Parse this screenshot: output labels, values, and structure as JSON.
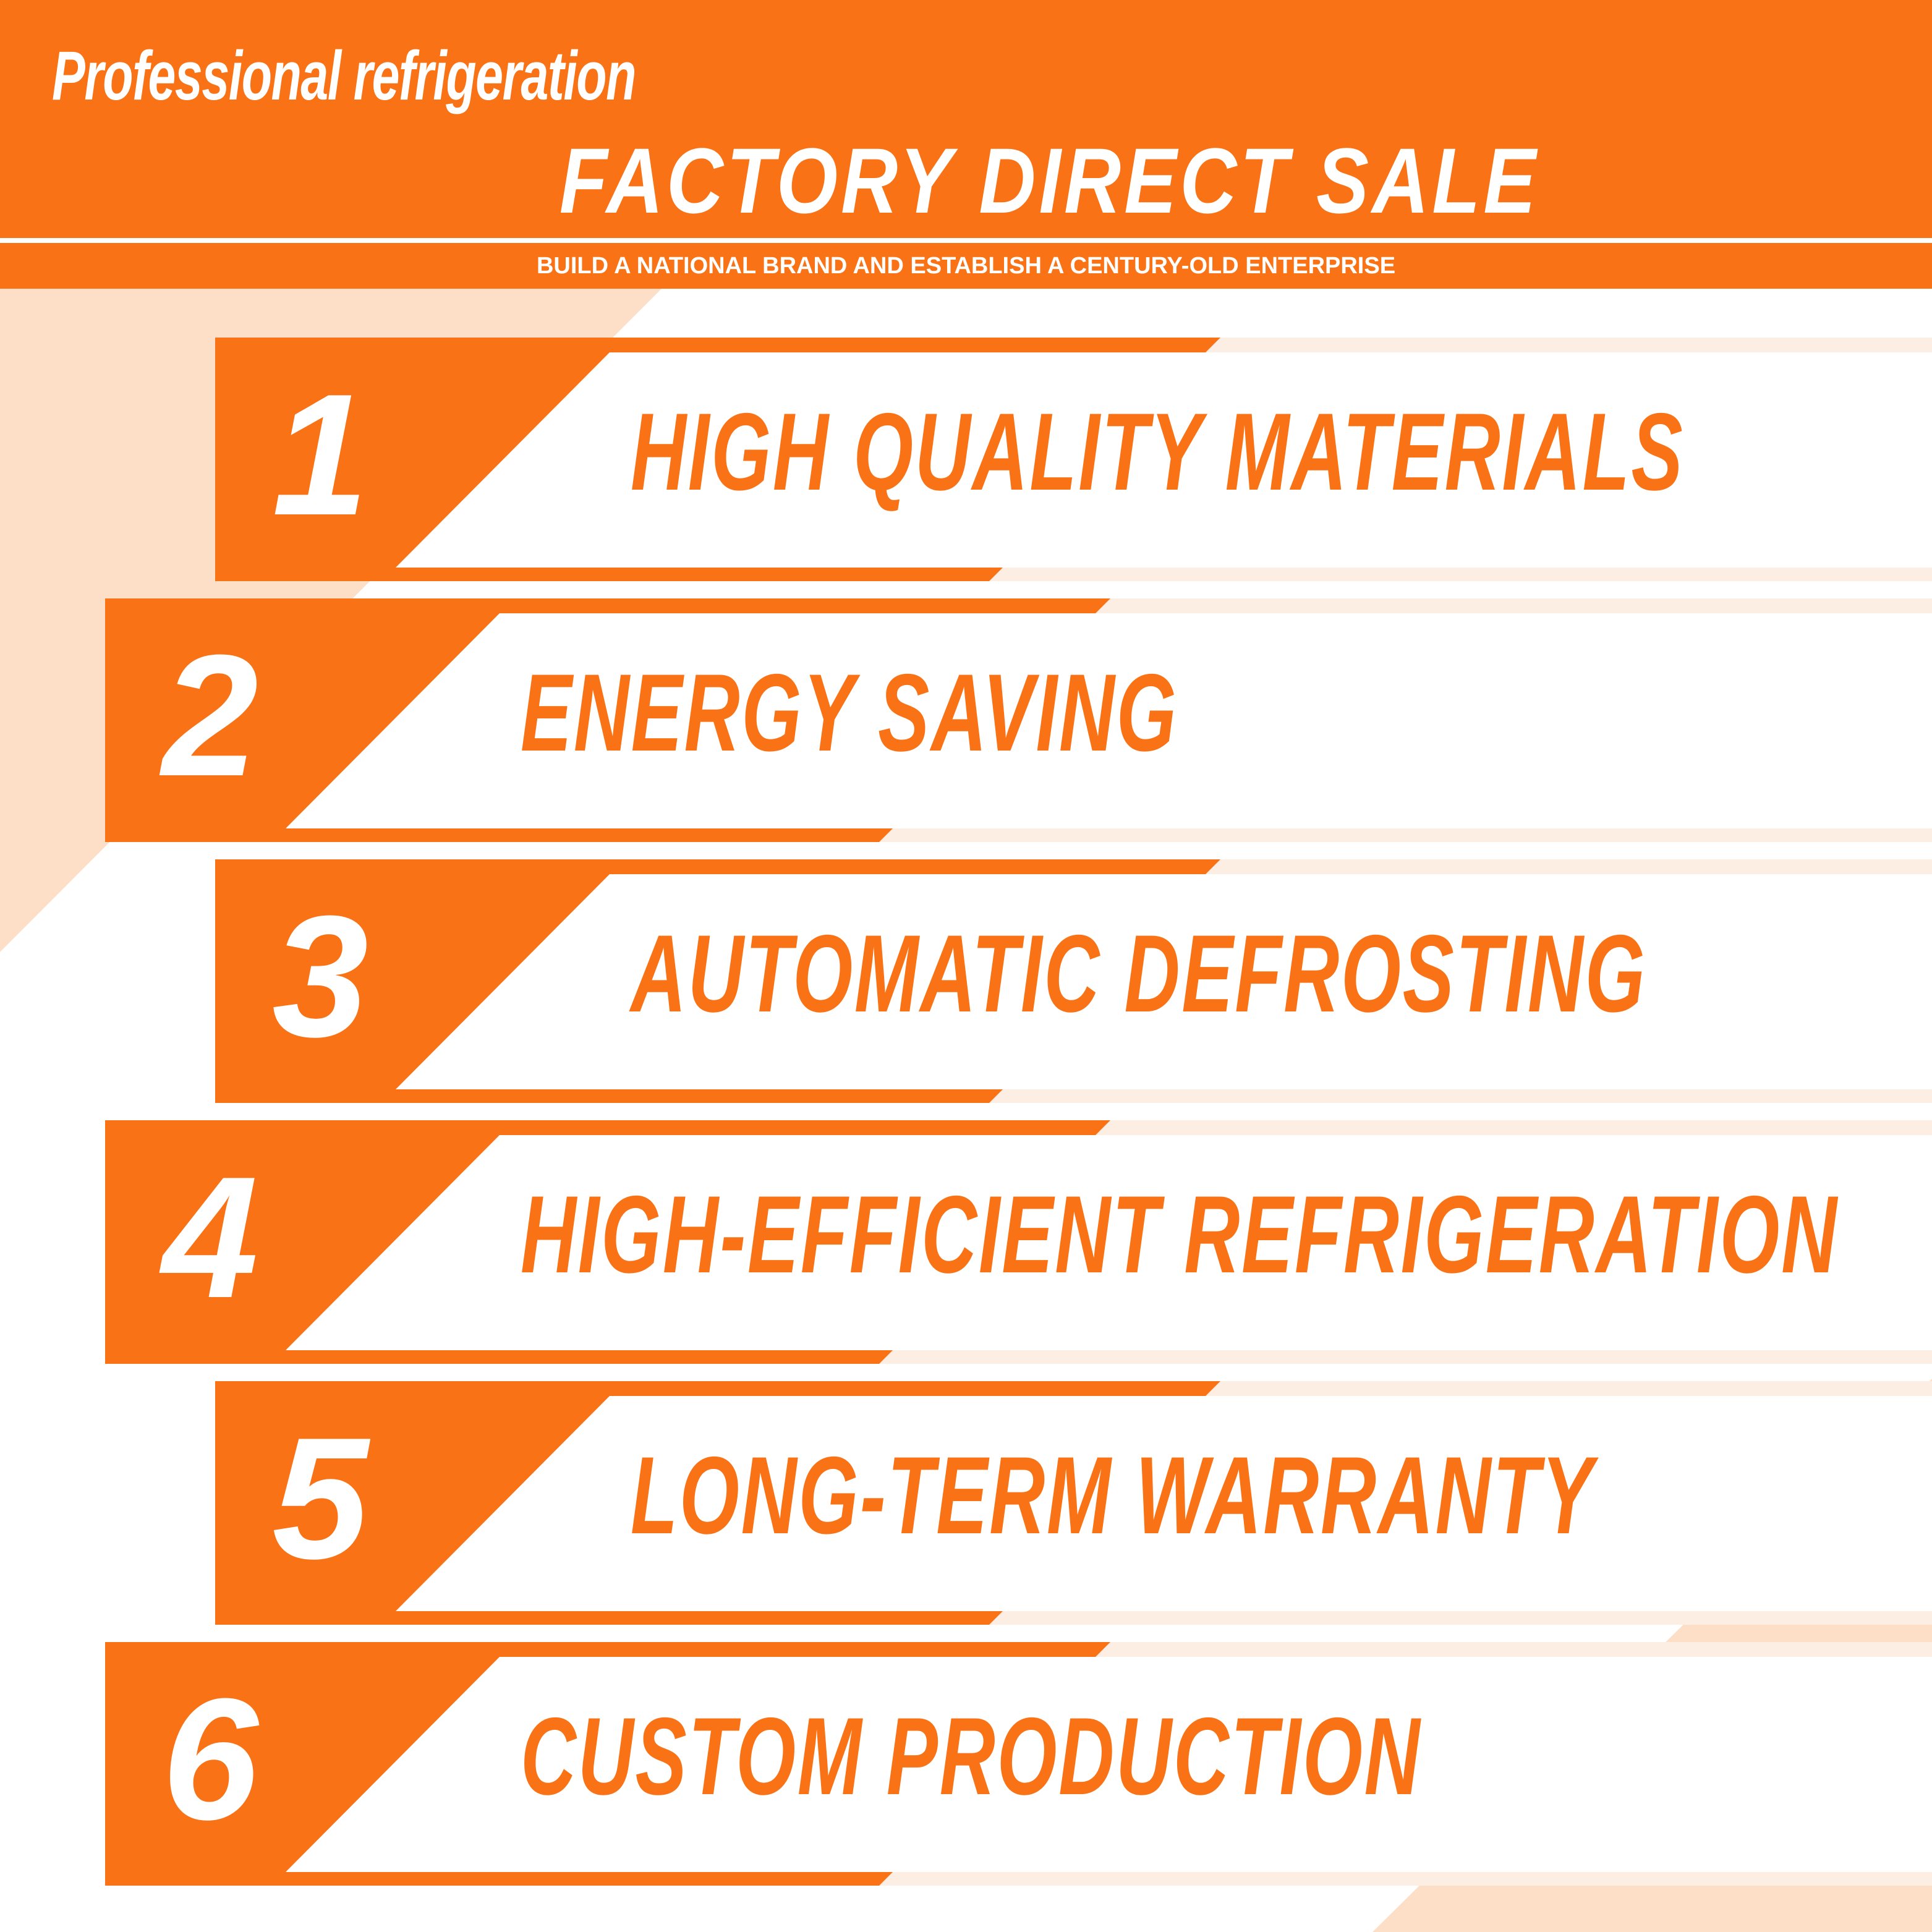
{
  "header": {
    "tagline": "Professional refrigeration",
    "title": "FACTORY DIRECT SALE",
    "subtitle": "BUILD A NATIONAL BRAND AND ESTABLISH A CENTURY-OLD ENTERPRISE"
  },
  "features": [
    {
      "number": "1",
      "label": "HIGH QUALITY MATERIALS"
    },
    {
      "number": "2",
      "label": "ENERGY SAVING"
    },
    {
      "number": "3",
      "label": "AUTOMATIC DEFROSTING"
    },
    {
      "number": "4",
      "label": "HIGH-EFFICIENT REFRIGERATION"
    },
    {
      "number": "5",
      "label": "LONG-TERM WARRANTY"
    },
    {
      "number": "6",
      "label": "CUSTOM PRODUCTION"
    }
  ],
  "colors": {
    "accent": "#f97316",
    "peach": "#fddfc8",
    "light_peach": "#fdeee4",
    "background": "#ffffff"
  }
}
